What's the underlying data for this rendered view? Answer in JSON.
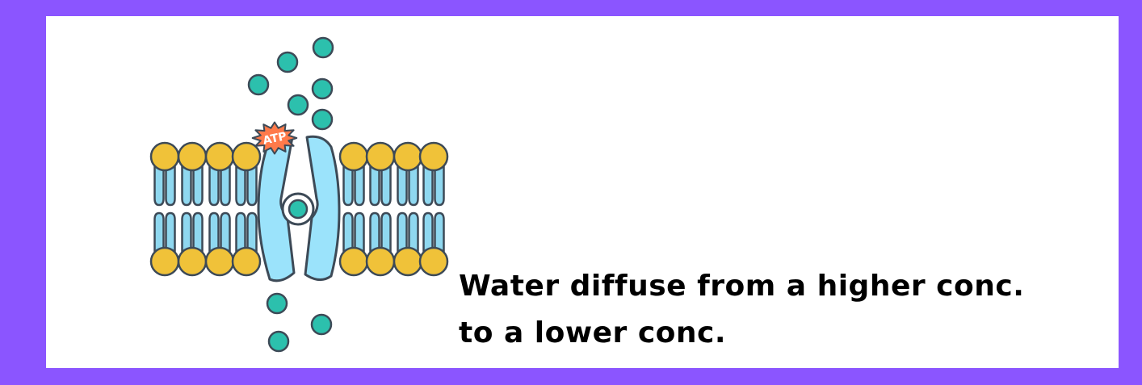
{
  "caption": {
    "line1": "Water diffuse from a higher conc.",
    "line2": "to a lower conc."
  },
  "atp_label": "ATP",
  "colors": {
    "frame": "#8b55ff",
    "panel": "#ffffff",
    "head": "#f0c239",
    "tail": "#8fd8f0",
    "protein": "#9be3fb",
    "molecule": "#2cc0ad",
    "atp": "#ff7a4a",
    "outline": "#3d4a57"
  },
  "icons": [
    "phospholipid-head",
    "lipid-tail",
    "channel-protein",
    "water-molecule",
    "atp-burst"
  ]
}
